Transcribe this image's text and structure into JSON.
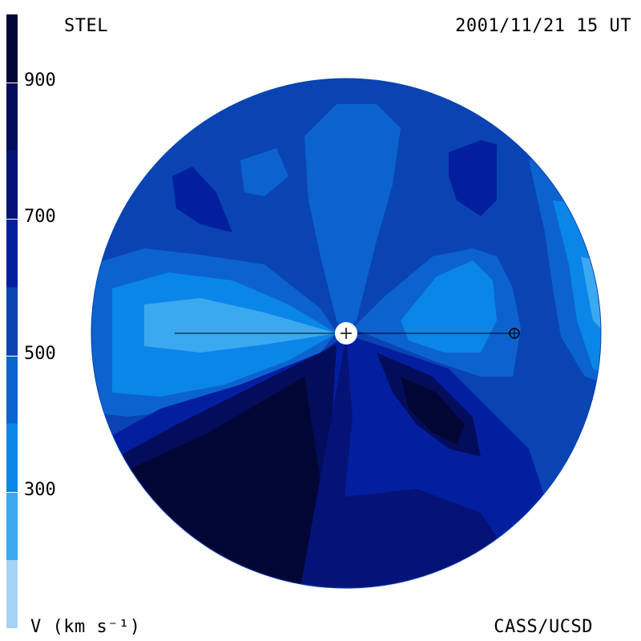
{
  "header": {
    "title_left": "STEL",
    "title_right": "2001/11/21 15 UT"
  },
  "footer": {
    "unit_label": "V (km s⁻¹)",
    "credit": "CASS/UCSD"
  },
  "colorbar": {
    "ticks": [
      {
        "label": "900",
        "value": 900
      },
      {
        "label": "700",
        "value": 700
      },
      {
        "label": "500",
        "value": 500
      },
      {
        "label": "300",
        "value": 300
      }
    ],
    "range": [
      100,
      1000
    ],
    "levels": [
      {
        "from": 100,
        "to": 200,
        "color": "#a7d3f7"
      },
      {
        "from": 200,
        "to": 300,
        "color": "#3aa9f0"
      },
      {
        "from": 300,
        "to": 400,
        "color": "#0a86e8"
      },
      {
        "from": 400,
        "to": 500,
        "color": "#0c63cf"
      },
      {
        "from": 500,
        "to": 600,
        "color": "#0a44b3"
      },
      {
        "from": 600,
        "to": 700,
        "color": "#031fa0"
      },
      {
        "from": 700,
        "to": 800,
        "color": "#051378"
      },
      {
        "from": 800,
        "to": 900,
        "color": "#040d5c"
      },
      {
        "from": 900,
        "to": 1000,
        "color": "#020635"
      }
    ]
  },
  "map": {
    "background_color": "#0a44b3",
    "sun_symbol": "sun-icon",
    "earth_symbol": "earth-icon"
  }
}
